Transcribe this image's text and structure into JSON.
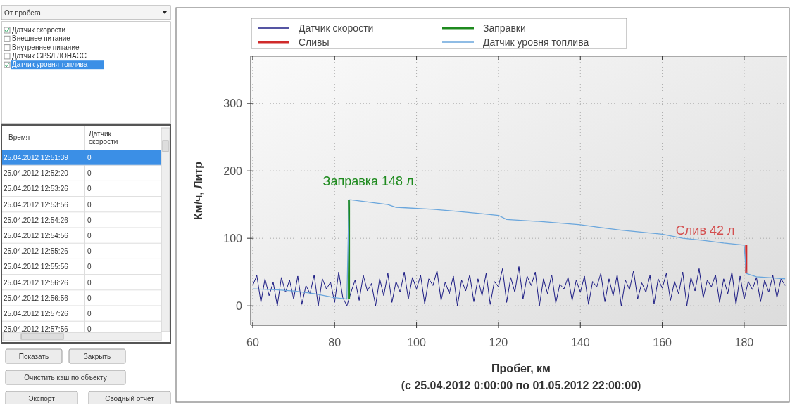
{
  "chart_data": [
    {
      "type": "other",
      "annotations": [
        "От пробега",
        "Датчик скорости",
        "Внешнее питание",
        "Внутреннее питание",
        "Датчик GPS/ГЛОНАСС",
        "Датчик уровня топлива",
        "Время",
        "Датчик скорости",
        "Показать",
        "Закрыть",
        "Очистить кэш по объекту",
        "Экспорт",
        "Сводный отчет"
      ],
      "categories": [
        "25.04.2012 12:51:39",
        "25.04.2012 12:52:20",
        "25.04.2012 12:53:26",
        "25.04.2012 12:53:56",
        "25.04.2012 12:54:26",
        "25.04.2012 12:54:56",
        "25.04.2012 12:55:26",
        "25.04.2012 12:55:56",
        "25.04.2012 12:56:26",
        "25.04.2012 12:56:56",
        "25.04.2012 12:57:26",
        "25.04.2012 12:57:56"
      ],
      "values": [
        0,
        0,
        0,
        0,
        0,
        0,
        0,
        0,
        0,
        0,
        0,
        0
      ],
      "data_labels": true
    },
    {
      "type": "line",
      "xlabel": "Пробег, км",
      "ylabel": "Км/ч, Литр",
      "annotations": [
        {
          "text": "Заправка 148 л.",
          "x": 83.5,
          "y": 157
        },
        {
          "text": "Слив 42 л",
          "x": 180.5,
          "y": 90
        },
        "(с 25.04.2012 0:00:00 по 01.05.2012 22:00:00)"
      ],
      "xlim": [
        59.5,
        190.5
      ],
      "xticks": [
        60,
        80,
        100,
        120,
        140,
        160,
        180
      ],
      "ylim": [
        -29,
        370
      ],
      "yticks": [
        0,
        100,
        200,
        300
      ],
      "grid": true,
      "legend": "top",
      "series": [
        {
          "name": "Датчик скорости",
          "color": "#1c1c84",
          "x": [
            60,
            61,
            62,
            63,
            64,
            65,
            66,
            67,
            68,
            69,
            70,
            71,
            72,
            73,
            74,
            75,
            76,
            77,
            78,
            79,
            80,
            81,
            82,
            83,
            84,
            85,
            86,
            87,
            88,
            89,
            90,
            91,
            92,
            93,
            94,
            95,
            96,
            97,
            98,
            99,
            100,
            101,
            102,
            103,
            104,
            105,
            106,
            107,
            108,
            109,
            110,
            111,
            112,
            113,
            114,
            115,
            116,
            117,
            118,
            119,
            120,
            121,
            122,
            123,
            124,
            125,
            126,
            127,
            128,
            129,
            130,
            131,
            132,
            133,
            134,
            135,
            136,
            137,
            138,
            139,
            140,
            141,
            142,
            143,
            144,
            145,
            146,
            147,
            148,
            149,
            150,
            151,
            152,
            153,
            154,
            155,
            156,
            157,
            158,
            159,
            160,
            161,
            162,
            163,
            164,
            165,
            166,
            167,
            168,
            169,
            170,
            171,
            172,
            173,
            174,
            175,
            176,
            177,
            178,
            179,
            180,
            181,
            182,
            183,
            184,
            185,
            186,
            187,
            188,
            189,
            190
          ],
          "values": [
            30,
            45,
            5,
            40,
            15,
            35,
            0,
            42,
            20,
            38,
            10,
            44,
            2,
            30,
            18,
            46,
            0,
            40,
            25,
            35,
            5,
            50,
            12,
            0,
            20,
            38,
            8,
            45,
            22,
            33,
            0,
            40,
            15,
            48,
            5,
            36,
            20,
            50,
            10,
            42,
            25,
            45,
            3,
            40,
            30,
            52,
            8,
            35,
            18,
            44,
            0,
            38,
            22,
            46,
            6,
            40,
            15,
            48,
            2,
            36,
            28,
            55,
            5,
            42,
            20,
            58,
            10,
            44,
            30,
            50,
            0,
            40,
            18,
            46,
            4,
            32,
            25,
            42,
            8,
            38,
            20,
            44,
            2,
            36,
            28,
            48,
            6,
            40,
            15,
            46,
            0,
            38,
            24,
            52,
            10,
            34,
            20,
            45,
            3,
            40,
            26,
            48,
            8,
            36,
            18,
            50,
            0,
            42,
            22,
            55,
            12,
            38,
            28,
            46,
            5,
            40,
            18,
            50,
            2,
            44,
            10,
            36,
            24,
            42,
            6,
            38,
            20,
            45,
            12,
            40,
            30
          ]
        },
        {
          "name": "Сливы",
          "color": "#d02a2a",
          "x": [
            180.5,
            180.5
          ],
          "values": [
            90,
            48
          ]
        },
        {
          "name": "Заправки",
          "color": "#1e8a1e",
          "x": [
            83.5,
            83.5
          ],
          "values": [
            10,
            157
          ]
        },
        {
          "name": "Датчик уровня топлива",
          "color": "#6aa6dc",
          "x": [
            60,
            65,
            70,
            75,
            80,
            83,
            83.5,
            84,
            88,
            93,
            95,
            104,
            110,
            115,
            120,
            122,
            130,
            140,
            145,
            150,
            160,
            165,
            170,
            175,
            180,
            180.5,
            183,
            190
          ],
          "values": [
            25,
            24,
            22,
            18,
            12,
            10,
            157,
            157,
            154,
            150,
            146,
            143,
            140,
            137,
            134,
            128,
            125,
            120,
            116,
            112,
            106,
            100,
            97,
            93,
            90,
            48,
            43,
            40
          ]
        }
      ]
    }
  ]
}
